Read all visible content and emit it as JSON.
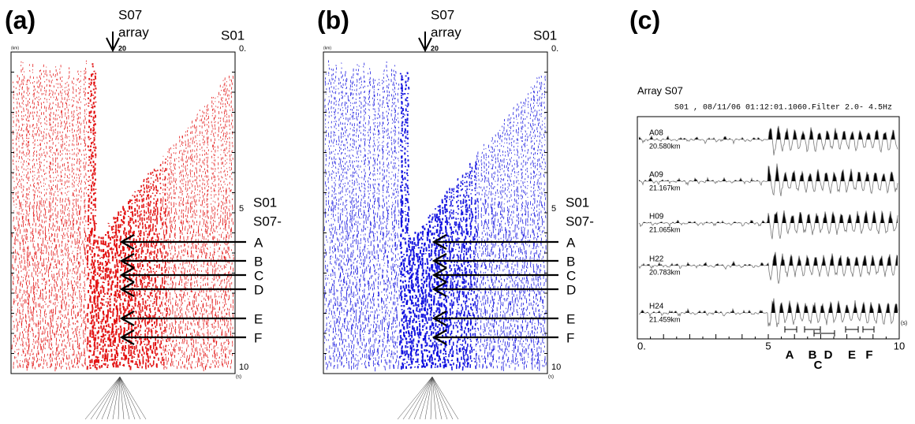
{
  "panels": [
    {
      "label": "(a)",
      "array_label_1": "S07",
      "array_label_2": "array",
      "station": "S01",
      "distance_tick": "20",
      "distance_unit": "(km)",
      "time_ticks": [
        "0.",
        "5",
        "10"
      ],
      "time_unit": "(s)",
      "side_label_1": "S01",
      "side_label_2": "S07-",
      "phases": [
        "A",
        "B",
        "C",
        "D",
        "E",
        "F"
      ]
    },
    {
      "label": "(b)",
      "array_label_1": "S07",
      "array_label_2": "array",
      "station": "S01",
      "distance_tick": "20",
      "distance_unit": "(km)",
      "time_ticks": [
        "0.",
        "5",
        "10"
      ],
      "time_unit": "(s)",
      "side_label_1": "S01",
      "side_label_2": "S07-",
      "phases": [
        "A",
        "B",
        "C",
        "D",
        "E",
        "F"
      ]
    }
  ],
  "panel_c": {
    "label": "(c)",
    "title": "Array S07",
    "header": "S01 , 08/11/06 01:12:01.1060.Filter  2.0- 4.5Hz",
    "traces": [
      {
        "name": "A08",
        "distance": "20.580km"
      },
      {
        "name": "A09",
        "distance": "21.167km"
      },
      {
        "name": "H09",
        "distance": "21.065km"
      },
      {
        "name": "H22",
        "distance": "20.783km"
      },
      {
        "name": "H24",
        "distance": "21.459km"
      }
    ],
    "time_ticks": [
      "0.",
      "5",
      "10"
    ],
    "time_unit": "(s)",
    "phases": [
      "A",
      "B",
      "C",
      "D",
      "E",
      "F"
    ]
  }
}
